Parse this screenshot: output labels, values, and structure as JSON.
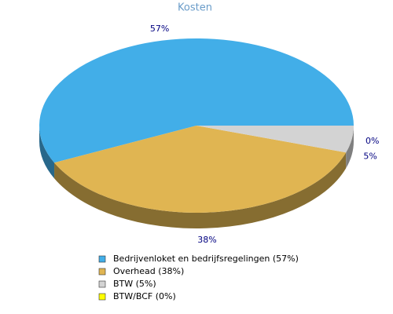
{
  "chart_data": {
    "type": "pie",
    "title": "Kosten",
    "categories": [
      "Bedrijvenloket en bedrijfsregelingen (57%)",
      "Overhead (38%)",
      "BTW (5%)",
      "BTW/BCF (0%)"
    ],
    "values": [
      57,
      38,
      5,
      0
    ],
    "value_labels": [
      "57%",
      "38%",
      "5%",
      "0%"
    ],
    "colors": [
      "#42aee8",
      "#e0b552",
      "#d3d3d3",
      "#ffff00"
    ]
  }
}
